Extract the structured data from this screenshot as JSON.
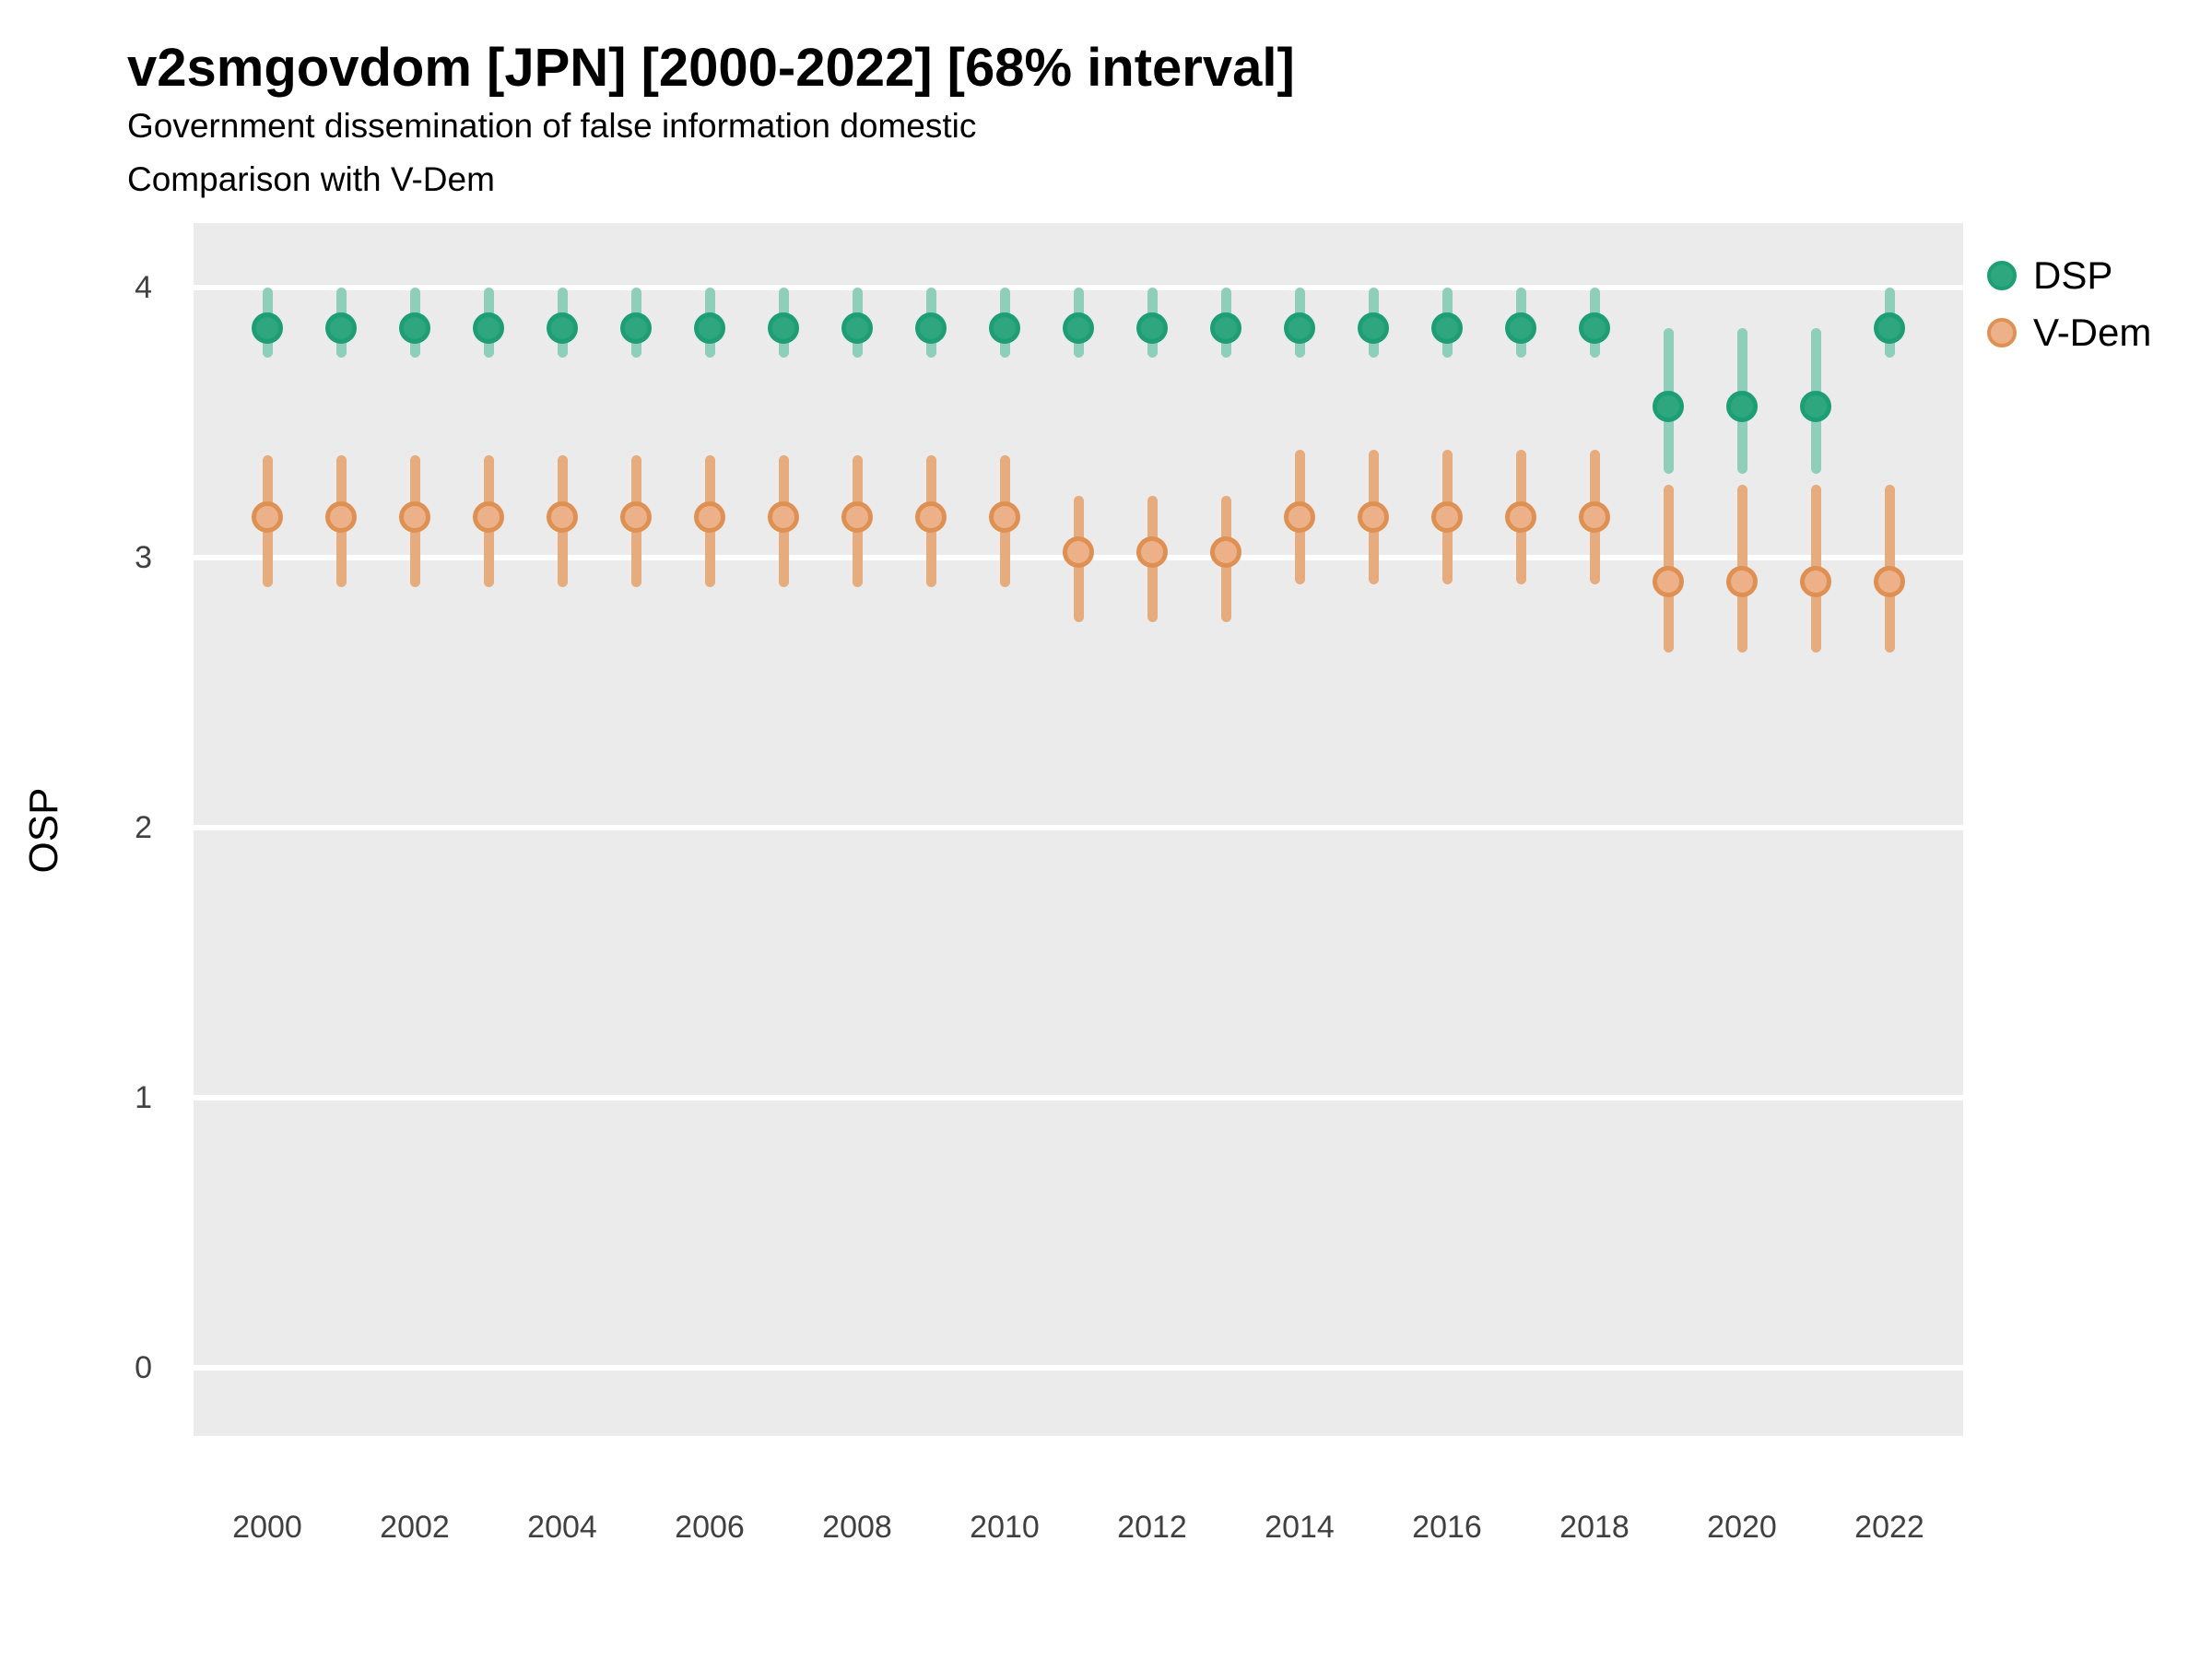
{
  "header": {
    "title": "v2smgovdom [JPN] [2000-2022] [68% interval]",
    "subtitle1": "Government dissemination of false information domestic",
    "subtitle2": "Comparison with V-Dem"
  },
  "chart_data": {
    "type": "pointrange",
    "title": "v2smgovdom [JPN] [2000-2022] [68% interval]",
    "subtitle": [
      "Government dissemination of false information domestic",
      "Comparison with V-Dem"
    ],
    "interval": "68%",
    "xlabel": "",
    "ylabel": "OSP",
    "ylim": [
      -0.25,
      4.25
    ],
    "yticks": [
      0,
      1,
      2,
      3,
      4
    ],
    "xticks": [
      2000,
      2002,
      2004,
      2006,
      2008,
      2010,
      2012,
      2014,
      2016,
      2018,
      2020,
      2022
    ],
    "grid": "major horizontal white lines on gray panel, no minor grid",
    "legend_position": "right-top",
    "x": [
      2000,
      2001,
      2002,
      2003,
      2004,
      2005,
      2006,
      2007,
      2008,
      2009,
      2010,
      2011,
      2012,
      2013,
      2014,
      2015,
      2016,
      2017,
      2018,
      2019,
      2020,
      2021,
      2022
    ],
    "series": [
      {
        "name": "DSP",
        "point_color": "#2EA77E",
        "ring_color": "#1E9E74",
        "bar_color": "#8FCEB8",
        "values": [
          3.85,
          3.85,
          3.85,
          3.85,
          3.85,
          3.85,
          3.85,
          3.85,
          3.85,
          3.85,
          3.85,
          3.85,
          3.85,
          3.85,
          3.85,
          3.85,
          3.85,
          3.85,
          3.85,
          3.56,
          3.56,
          3.56,
          3.85
        ],
        "lower": [
          3.74,
          3.74,
          3.74,
          3.74,
          3.74,
          3.74,
          3.74,
          3.74,
          3.74,
          3.74,
          3.74,
          3.74,
          3.74,
          3.74,
          3.74,
          3.74,
          3.74,
          3.74,
          3.74,
          3.31,
          3.31,
          3.31,
          3.74
        ],
        "upper": [
          4.0,
          4.0,
          4.0,
          4.0,
          4.0,
          4.0,
          4.0,
          4.0,
          4.0,
          4.0,
          4.0,
          4.0,
          4.0,
          4.0,
          4.0,
          4.0,
          4.0,
          4.0,
          4.0,
          3.85,
          3.85,
          3.85,
          4.0
        ]
      },
      {
        "name": "V-Dem",
        "point_color": "#EDB189",
        "ring_color": "#DF9154",
        "bar_color": "#E7AC7D",
        "values": [
          3.15,
          3.15,
          3.15,
          3.15,
          3.15,
          3.15,
          3.15,
          3.15,
          3.15,
          3.15,
          3.15,
          3.02,
          3.02,
          3.02,
          3.15,
          3.15,
          3.15,
          3.15,
          3.15,
          2.91,
          2.91,
          2.91,
          2.91
        ],
        "lower": [
          2.89,
          2.89,
          2.89,
          2.89,
          2.89,
          2.89,
          2.89,
          2.89,
          2.89,
          2.89,
          2.89,
          2.76,
          2.76,
          2.76,
          2.9,
          2.9,
          2.9,
          2.9,
          2.9,
          2.65,
          2.65,
          2.65,
          2.65
        ],
        "upper": [
          3.38,
          3.38,
          3.38,
          3.38,
          3.38,
          3.38,
          3.38,
          3.38,
          3.38,
          3.38,
          3.38,
          3.23,
          3.23,
          3.23,
          3.4,
          3.4,
          3.4,
          3.4,
          3.4,
          3.27,
          3.27,
          3.27,
          3.27
        ]
      }
    ],
    "colors": {
      "panel_bg": "#EBEBEB",
      "grid": "#FFFFFF",
      "title_text": "#000000",
      "tick_text": "#404040"
    }
  }
}
